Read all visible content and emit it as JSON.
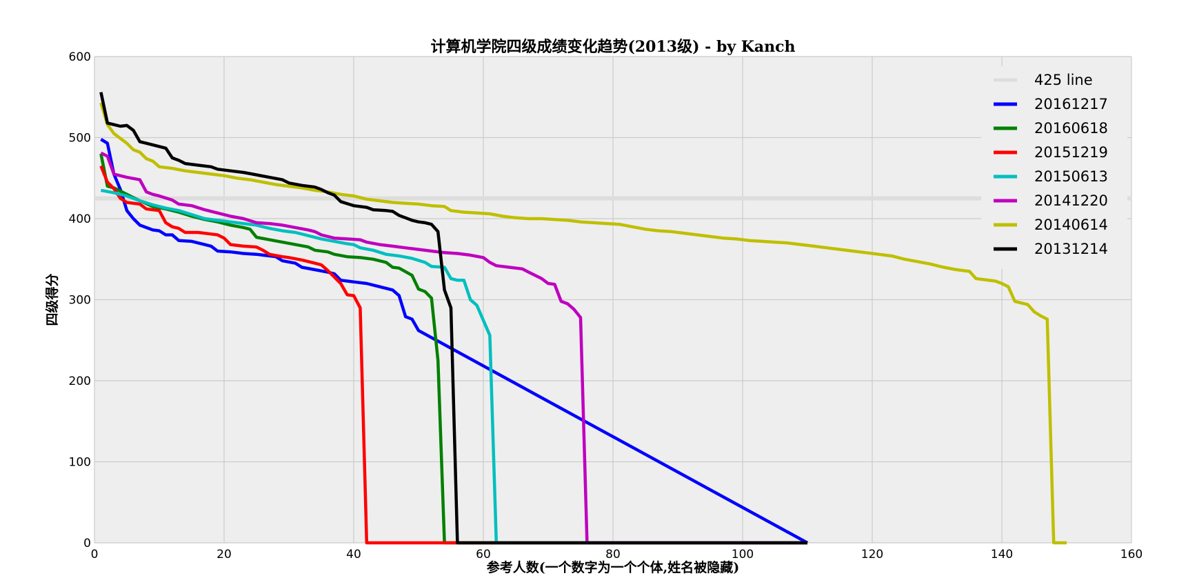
{
  "chart_data": {
    "type": "line",
    "title": "计算机学院四级成绩变化趋势(2013级) - by Kanch",
    "xlabel": "参考人数(一个数字为一个个体,姓名被隐藏)",
    "ylabel": "四级得分",
    "xlim": [
      0,
      160
    ],
    "ylim": [
      0,
      600
    ],
    "xticks": [
      0,
      20,
      40,
      60,
      80,
      100,
      120,
      140,
      160
    ],
    "yticks": [
      0,
      100,
      200,
      300,
      400,
      500,
      600
    ],
    "grid": true,
    "legend_position": "top-right",
    "background": "#eeeeee",
    "reference_line": {
      "name": "425 line",
      "y": 425,
      "x": [
        0,
        160
      ],
      "color": "#dddddd"
    },
    "series": [
      {
        "name": "20161217",
        "color": "#0000ff",
        "n": 50,
        "points": [
          [
            1,
            498
          ],
          [
            2,
            493
          ],
          [
            3,
            455
          ],
          [
            4,
            436
          ],
          [
            5,
            410
          ],
          [
            6,
            400
          ],
          [
            7,
            392
          ],
          [
            8,
            389
          ],
          [
            9,
            386
          ],
          [
            10,
            385
          ],
          [
            11,
            380
          ],
          [
            12,
            380
          ],
          [
            13,
            373
          ],
          [
            15,
            372
          ],
          [
            17,
            368
          ],
          [
            18,
            366
          ],
          [
            19,
            360
          ],
          [
            21,
            359
          ],
          [
            23,
            357
          ],
          [
            25,
            356
          ],
          [
            28,
            353
          ],
          [
            29,
            348
          ],
          [
            31,
            345
          ],
          [
            32,
            340
          ],
          [
            34,
            337
          ],
          [
            36,
            334
          ],
          [
            37,
            332
          ],
          [
            38,
            324
          ],
          [
            40,
            322
          ],
          [
            42,
            320
          ],
          [
            44,
            316
          ],
          [
            45,
            314
          ],
          [
            46,
            312
          ],
          [
            47,
            305
          ],
          [
            48,
            279
          ],
          [
            49,
            276
          ],
          [
            50,
            262
          ]
        ]
      },
      {
        "name": "20160618",
        "color": "#008000",
        "n": 52,
        "points": [
          [
            1,
            480
          ],
          [
            2,
            440
          ],
          [
            3,
            438
          ],
          [
            5,
            430
          ],
          [
            7,
            422
          ],
          [
            9,
            415
          ],
          [
            11,
            412
          ],
          [
            13,
            408
          ],
          [
            15,
            403
          ],
          [
            17,
            399
          ],
          [
            19,
            396
          ],
          [
            21,
            392
          ],
          [
            23,
            389
          ],
          [
            24,
            387
          ],
          [
            25,
            377
          ],
          [
            27,
            374
          ],
          [
            29,
            371
          ],
          [
            31,
            368
          ],
          [
            33,
            365
          ],
          [
            34,
            361
          ],
          [
            36,
            359
          ],
          [
            37,
            356
          ],
          [
            39,
            353
          ],
          [
            41,
            352
          ],
          [
            43,
            350
          ],
          [
            45,
            346
          ],
          [
            46,
            340
          ],
          [
            47,
            339
          ],
          [
            49,
            330
          ],
          [
            50,
            313
          ],
          [
            51,
            310
          ],
          [
            52,
            302
          ],
          [
            53,
            225
          ],
          [
            54,
            0
          ]
        ]
      },
      {
        "name": "20151219",
        "color": "#ff0000",
        "n": 39,
        "points": [
          [
            1,
            465
          ],
          [
            2,
            445
          ],
          [
            3,
            437
          ],
          [
            4,
            425
          ],
          [
            5,
            420
          ],
          [
            7,
            418
          ],
          [
            8,
            412
          ],
          [
            10,
            410
          ],
          [
            11,
            395
          ],
          [
            12,
            390
          ],
          [
            13,
            388
          ],
          [
            14,
            383
          ],
          [
            16,
            383
          ],
          [
            18,
            381
          ],
          [
            19,
            380
          ],
          [
            20,
            376
          ],
          [
            21,
            368
          ],
          [
            23,
            366
          ],
          [
            25,
            365
          ],
          [
            26,
            361
          ],
          [
            27,
            356
          ],
          [
            29,
            353
          ],
          [
            30,
            352
          ],
          [
            32,
            349
          ],
          [
            34,
            345
          ],
          [
            35,
            343
          ],
          [
            36,
            336
          ],
          [
            37,
            328
          ],
          [
            38,
            320
          ],
          [
            39,
            306
          ],
          [
            40,
            305
          ],
          [
            41,
            290
          ],
          [
            42,
            0
          ]
        ]
      },
      {
        "name": "20150613",
        "color": "#00bfbf",
        "n": 58,
        "points": [
          [
            1,
            435
          ],
          [
            3,
            432
          ],
          [
            5,
            428
          ],
          [
            7,
            422
          ],
          [
            9,
            417
          ],
          [
            11,
            413
          ],
          [
            13,
            410
          ],
          [
            15,
            405
          ],
          [
            17,
            400
          ],
          [
            19,
            398
          ],
          [
            21,
            396
          ],
          [
            23,
            394
          ],
          [
            25,
            392
          ],
          [
            27,
            388
          ],
          [
            29,
            385
          ],
          [
            31,
            383
          ],
          [
            33,
            379
          ],
          [
            35,
            375
          ],
          [
            37,
            372
          ],
          [
            39,
            369
          ],
          [
            40,
            368
          ],
          [
            41,
            364
          ],
          [
            43,
            361
          ],
          [
            45,
            356
          ],
          [
            47,
            354
          ],
          [
            49,
            351
          ],
          [
            51,
            346
          ],
          [
            52,
            341
          ],
          [
            54,
            340
          ],
          [
            55,
            326
          ],
          [
            56,
            324
          ],
          [
            57,
            324
          ],
          [
            58,
            300
          ],
          [
            59,
            293
          ],
          [
            61,
            256
          ],
          [
            62,
            0
          ]
        ]
      },
      {
        "name": "20141220",
        "color": "#bf00bf",
        "n": 74,
        "points": [
          [
            1,
            481
          ],
          [
            2,
            477
          ],
          [
            3,
            455
          ],
          [
            5,
            451
          ],
          [
            7,
            448
          ],
          [
            8,
            433
          ],
          [
            9,
            430
          ],
          [
            10,
            428
          ],
          [
            12,
            423
          ],
          [
            13,
            418
          ],
          [
            15,
            416
          ],
          [
            17,
            411
          ],
          [
            19,
            407
          ],
          [
            21,
            403
          ],
          [
            23,
            400
          ],
          [
            25,
            395
          ],
          [
            27,
            394
          ],
          [
            29,
            392
          ],
          [
            31,
            389
          ],
          [
            33,
            386
          ],
          [
            34,
            384
          ],
          [
            35,
            380
          ],
          [
            37,
            376
          ],
          [
            39,
            375
          ],
          [
            41,
            374
          ],
          [
            42,
            371
          ],
          [
            44,
            368
          ],
          [
            46,
            366
          ],
          [
            48,
            364
          ],
          [
            50,
            362
          ],
          [
            52,
            360
          ],
          [
            54,
            358
          ],
          [
            56,
            357
          ],
          [
            58,
            355
          ],
          [
            60,
            352
          ],
          [
            61,
            346
          ],
          [
            62,
            342
          ],
          [
            64,
            340
          ],
          [
            66,
            338
          ],
          [
            67,
            334
          ],
          [
            69,
            326
          ],
          [
            70,
            320
          ],
          [
            71,
            319
          ],
          [
            72,
            298
          ],
          [
            73,
            295
          ],
          [
            74,
            288
          ],
          [
            75,
            278
          ],
          [
            76,
            0
          ]
        ]
      },
      {
        "name": "20140614",
        "color": "#bfbf00",
        "n": 146,
        "points": [
          [
            1,
            543
          ],
          [
            2,
            516
          ],
          [
            3,
            505
          ],
          [
            4,
            499
          ],
          [
            5,
            493
          ],
          [
            6,
            485
          ],
          [
            7,
            482
          ],
          [
            8,
            474
          ],
          [
            9,
            471
          ],
          [
            10,
            464
          ],
          [
            12,
            462
          ],
          [
            14,
            459
          ],
          [
            16,
            457
          ],
          [
            18,
            455
          ],
          [
            20,
            453
          ],
          [
            22,
            450
          ],
          [
            24,
            448
          ],
          [
            26,
            445
          ],
          [
            28,
            442
          ],
          [
            30,
            440
          ],
          [
            32,
            438
          ],
          [
            34,
            435
          ],
          [
            36,
            433
          ],
          [
            38,
            430
          ],
          [
            40,
            428
          ],
          [
            42,
            424
          ],
          [
            44,
            422
          ],
          [
            46,
            420
          ],
          [
            48,
            419
          ],
          [
            50,
            418
          ],
          [
            52,
            416
          ],
          [
            54,
            415
          ],
          [
            55,
            410
          ],
          [
            57,
            408
          ],
          [
            59,
            407
          ],
          [
            61,
            406
          ],
          [
            63,
            403
          ],
          [
            65,
            401
          ],
          [
            67,
            400
          ],
          [
            69,
            400
          ],
          [
            71,
            399
          ],
          [
            73,
            398
          ],
          [
            75,
            396
          ],
          [
            77,
            395
          ],
          [
            79,
            394
          ],
          [
            81,
            393
          ],
          [
            83,
            390
          ],
          [
            85,
            387
          ],
          [
            87,
            385
          ],
          [
            89,
            384
          ],
          [
            91,
            382
          ],
          [
            93,
            380
          ],
          [
            95,
            378
          ],
          [
            97,
            376
          ],
          [
            99,
            375
          ],
          [
            101,
            373
          ],
          [
            103,
            372
          ],
          [
            105,
            371
          ],
          [
            107,
            370
          ],
          [
            109,
            368
          ],
          [
            111,
            366
          ],
          [
            113,
            364
          ],
          [
            115,
            362
          ],
          [
            117,
            360
          ],
          [
            119,
            358
          ],
          [
            121,
            356
          ],
          [
            123,
            354
          ],
          [
            125,
            350
          ],
          [
            127,
            347
          ],
          [
            129,
            344
          ],
          [
            131,
            340
          ],
          [
            133,
            337
          ],
          [
            135,
            335
          ],
          [
            136,
            326
          ],
          [
            137,
            325
          ],
          [
            139,
            323
          ],
          [
            140,
            320
          ],
          [
            141,
            316
          ],
          [
            142,
            298
          ],
          [
            144,
            294
          ],
          [
            145,
            285
          ],
          [
            146,
            280
          ],
          [
            147,
            276
          ],
          [
            148,
            0
          ],
          [
            150,
            0
          ]
        ]
      },
      {
        "name": "20131214",
        "color": "#000000",
        "n": 55,
        "points": [
          [
            1,
            556
          ],
          [
            2,
            518
          ],
          [
            3,
            516
          ],
          [
            4,
            514
          ],
          [
            5,
            515
          ],
          [
            6,
            509
          ],
          [
            7,
            495
          ],
          [
            8,
            493
          ],
          [
            9,
            491
          ],
          [
            10,
            489
          ],
          [
            11,
            487
          ],
          [
            12,
            475
          ],
          [
            13,
            472
          ],
          [
            14,
            468
          ],
          [
            16,
            466
          ],
          [
            18,
            464
          ],
          [
            19,
            461
          ],
          [
            21,
            459
          ],
          [
            23,
            457
          ],
          [
            25,
            454
          ],
          [
            27,
            451
          ],
          [
            29,
            448
          ],
          [
            30,
            444
          ],
          [
            32,
            441
          ],
          [
            34,
            439
          ],
          [
            35,
            436
          ],
          [
            36,
            432
          ],
          [
            37,
            429
          ],
          [
            38,
            421
          ],
          [
            40,
            416
          ],
          [
            42,
            414
          ],
          [
            43,
            411
          ],
          [
            45,
            410
          ],
          [
            46,
            409
          ],
          [
            47,
            404
          ],
          [
            48,
            401
          ],
          [
            49,
            398
          ],
          [
            50,
            396
          ],
          [
            51,
            395
          ],
          [
            52,
            393
          ],
          [
            53,
            384
          ],
          [
            54,
            312
          ],
          [
            55,
            290
          ],
          [
            56,
            0
          ]
        ]
      }
    ]
  }
}
